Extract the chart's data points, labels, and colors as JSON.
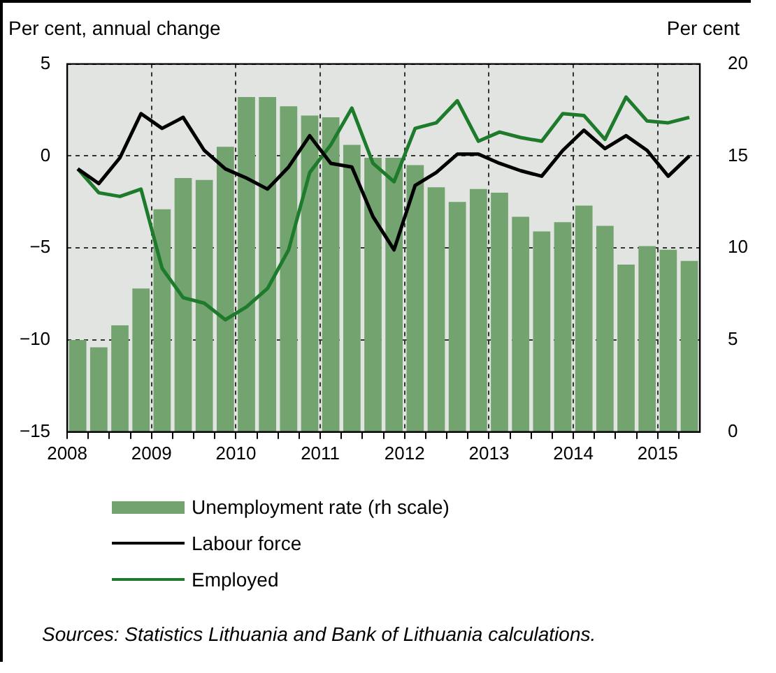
{
  "chart_data": {
    "type": "bar",
    "ylabel": "Per cent, annual change",
    "y2label": "Per cent",
    "x": [
      2008.125,
      2008.375,
      2008.625,
      2008.875,
      2009.125,
      2009.375,
      2009.625,
      2009.875,
      2010.125,
      2010.375,
      2010.625,
      2010.875,
      2011.125,
      2011.375,
      2011.625,
      2011.875,
      2012.125,
      2012.375,
      2012.625,
      2012.875,
      2013.125,
      2013.375,
      2013.625,
      2013.875,
      2014.125,
      2014.375,
      2014.625,
      2014.875,
      2015.125,
      2015.375
    ],
    "xlim": [
      2008,
      2015.5
    ],
    "xticks": [
      2008,
      {
        "value": 2008.25,
        "label": null
      },
      {
        "value": 2008.5,
        "label": null
      },
      {
        "value": 2008.75,
        "label": null
      },
      2009,
      {
        "value": 2009.25,
        "label": null
      },
      {
        "value": 2009.5,
        "label": null
      },
      {
        "value": 2009.75,
        "label": null
      },
      2010,
      {
        "value": 2010.25,
        "label": null
      },
      {
        "value": 2010.5,
        "label": null
      },
      {
        "value": 2010.75,
        "label": null
      },
      2011,
      {
        "value": 2011.25,
        "label": null
      },
      {
        "value": 2011.5,
        "label": null
      },
      {
        "value": 2011.75,
        "label": null
      },
      2012,
      {
        "value": 2012.25,
        "label": null
      },
      {
        "value": 2012.5,
        "label": null
      },
      {
        "value": 2012.75,
        "label": null
      },
      2013,
      {
        "value": 2013.25,
        "label": null
      },
      {
        "value": 2013.5,
        "label": null
      },
      {
        "value": 2013.75,
        "label": null
      },
      2014,
      {
        "value": 2014.25,
        "label": null
      },
      {
        "value": 2014.5,
        "label": null
      },
      {
        "value": 2014.75,
        "label": null
      },
      2015,
      {
        "value": 2015.25,
        "label": null
      }
    ],
    "ylim": [
      -15,
      5
    ],
    "yticks": [
      -15,
      -10,
      -5,
      0,
      5
    ],
    "y2lim": [
      0,
      20
    ],
    "y2ticks": [
      0,
      5,
      10,
      15,
      20
    ],
    "series": [
      {
        "name": "Unemployment rate (rh scale)",
        "axis": "y2",
        "color": "#73a470",
        "values": [
          5.0,
          4.6,
          5.8,
          7.8,
          12.1,
          13.8,
          13.7,
          15.5,
          18.2,
          18.2,
          17.7,
          17.2,
          17.1,
          15.6,
          14.9,
          14.9,
          14.5,
          13.3,
          12.5,
          13.2,
          13.0,
          11.7,
          10.9,
          11.4,
          12.3,
          11.2,
          9.1,
          10.1,
          9.9,
          9.3
        ]
      },
      {
        "name": "Labour force",
        "type": "line",
        "color": "#000000",
        "values": [
          -0.7,
          -1.5,
          -0.1,
          2.3,
          1.5,
          2.1,
          0.3,
          -0.7,
          -1.2,
          -1.8,
          -0.6,
          1.1,
          -0.4,
          -0.6,
          -3.3,
          -5.1,
          -1.6,
          -0.9,
          0.1,
          0.1,
          -0.4,
          -0.8,
          -1.1,
          0.3,
          1.4,
          0.4,
          1.1,
          0.3,
          -1.1,
          0.0
        ]
      },
      {
        "name": "Employed",
        "type": "line",
        "color": "#1e7b2c",
        "values": [
          -0.7,
          -2.0,
          -2.2,
          -1.8,
          -6.1,
          -7.7,
          -8.0,
          -8.9,
          -8.2,
          -7.2,
          -5.1,
          -0.9,
          0.6,
          2.6,
          -0.4,
          -1.4,
          1.5,
          1.8,
          3.0,
          0.8,
          1.3,
          1.0,
          0.8,
          2.3,
          2.2,
          0.9,
          3.2,
          1.9,
          1.8,
          2.1
        ]
      }
    ],
    "grid": true,
    "legend": "bottom",
    "marker": "none",
    "line_style": "solid",
    "annotations": [
      "Sources: Statistics Lithuania and Bank of Lithuania calculations."
    ]
  }
}
